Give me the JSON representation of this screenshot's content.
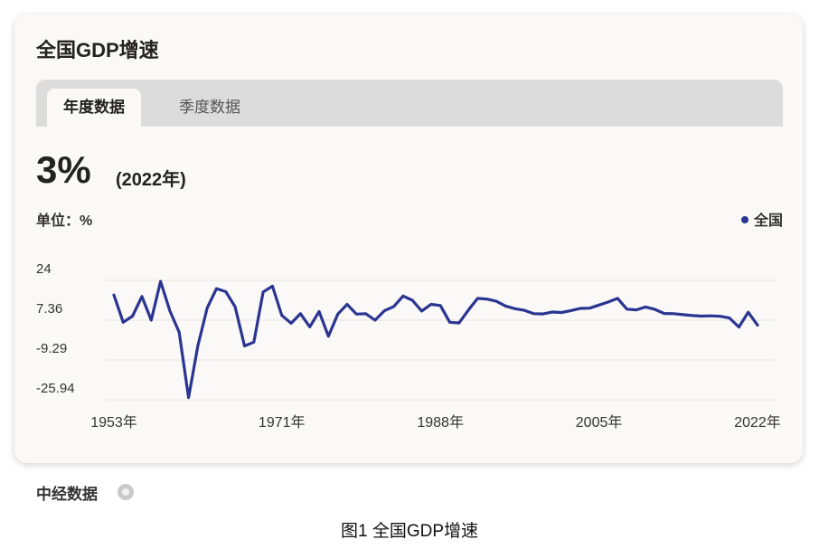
{
  "card": {
    "title": "全国GDP增速"
  },
  "tabs": [
    {
      "label": "年度数据",
      "active": true
    },
    {
      "label": "季度数据",
      "active": false
    }
  ],
  "headline": {
    "value": "3%",
    "year": "(2022年)"
  },
  "unit_label": "单位：%",
  "legend_label": "全国",
  "source_label": "中经数据",
  "figure_caption": "图1  全国GDP增速",
  "colors": {
    "line": "#2a3592",
    "gridline": "#ebe6e1",
    "card_bg": "#fbf9f7",
    "tab_bar": "#dcdcdc"
  },
  "chart_data": {
    "type": "line",
    "title": "",
    "xlabel": "",
    "ylabel": "%",
    "y_ticks": [
      "24",
      "7.36",
      "-9.29",
      "-25.94"
    ],
    "y_tick_values": [
      24,
      7.36,
      -9.29,
      -25.94
    ],
    "ylim": [
      -25.94,
      24
    ],
    "x_ticks": [
      "1953年",
      "1971年",
      "1988年",
      "2005年",
      "2022年"
    ],
    "x_tick_values": [
      1953,
      1971,
      1988,
      2005,
      2022
    ],
    "xlim": [
      1953,
      2022
    ],
    "legend": "top-right",
    "series": [
      {
        "name": "全国",
        "x": [
          1953,
          1954,
          1955,
          1956,
          1957,
          1958,
          1959,
          1960,
          1961,
          1962,
          1963,
          1964,
          1965,
          1966,
          1967,
          1968,
          1969,
          1970,
          1971,
          1972,
          1973,
          1974,
          1975,
          1976,
          1977,
          1978,
          1979,
          1980,
          1981,
          1982,
          1983,
          1984,
          1985,
          1986,
          1987,
          1988,
          1989,
          1990,
          1991,
          1992,
          1993,
          1994,
          1995,
          1996,
          1997,
          1998,
          1999,
          2000,
          2001,
          2002,
          2003,
          2004,
          2005,
          2006,
          2007,
          2008,
          2009,
          2010,
          2011,
          2012,
          2013,
          2014,
          2015,
          2016,
          2017,
          2018,
          2019,
          2020,
          2021,
          2022
        ],
        "values": [
          15.6,
          4.2,
          6.8,
          15.0,
          5.1,
          21.3,
          9.0,
          0.0,
          -27.3,
          -5.6,
          10.2,
          18.3,
          17.0,
          10.7,
          -5.7,
          -4.1,
          16.9,
          19.3,
          7.1,
          3.8,
          7.8,
          2.3,
          8.7,
          -1.6,
          7.6,
          11.7,
          7.6,
          7.8,
          5.1,
          9.0,
          10.8,
          15.2,
          13.4,
          8.9,
          11.7,
          11.2,
          4.2,
          3.9,
          9.3,
          14.2,
          13.9,
          13.0,
          11.0,
          9.9,
          9.2,
          7.8,
          7.7,
          8.5,
          8.3,
          9.1,
          10.0,
          10.1,
          11.4,
          12.7,
          14.2,
          9.7,
          9.4,
          10.6,
          9.6,
          7.9,
          7.8,
          7.4,
          7.0,
          6.8,
          6.9,
          6.7,
          6.0,
          2.2,
          8.4,
          3.0
        ]
      }
    ]
  }
}
